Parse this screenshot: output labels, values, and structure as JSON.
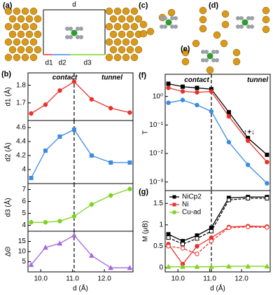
{
  "figure_panels": {
    "a": {
      "panel": "(a)",
      "labels": [
        "d",
        "d1",
        "d2",
        "d3"
      ]
    },
    "c": {
      "panel": "(c)"
    },
    "d": {
      "panel": "(d)"
    },
    "e": {
      "panel": "(e)"
    }
  },
  "chart_data": [
    {
      "type": "line",
      "panel": "(b)",
      "ylabel": "d1 (Å)",
      "xlim": [
        9.6,
        12.9
      ],
      "ylim": [
        1.6,
        1.87
      ],
      "yticks": [
        1.7,
        1.8
      ],
      "vline": 11.05,
      "annotations": [
        "contact",
        "tunnel"
      ],
      "x": [
        9.7,
        10.15,
        10.6,
        11.05,
        11.6,
        12.2,
        12.8
      ],
      "series": [
        {
          "color": "#e8322a",
          "marker": "circle",
          "values": [
            1.64,
            1.69,
            1.77,
            1.82,
            1.72,
            1.67,
            1.645
          ]
        }
      ]
    },
    {
      "type": "line",
      "ylabel": "d2 (Å)",
      "xlim": [
        9.6,
        12.9
      ],
      "ylim": [
        3.8,
        4.7
      ],
      "yticks": [
        4.0,
        4.2,
        4.4,
        4.6
      ],
      "vline": 11.05,
      "x": [
        9.7,
        10.15,
        10.6,
        11.05,
        11.6,
        12.2,
        12.8
      ],
      "series": [
        {
          "color": "#3b8be0",
          "marker": "square",
          "values": [
            3.88,
            4.27,
            4.47,
            4.57,
            4.2,
            4.1,
            4.1
          ]
        }
      ]
    },
    {
      "type": "line",
      "ylabel": "d3 (Å)",
      "xlim": [
        9.6,
        12.9
      ],
      "ylim": [
        3.5,
        7.5
      ],
      "yticks": [
        4,
        5,
        6,
        7
      ],
      "vline": 11.05,
      "x": [
        9.7,
        10.15,
        10.6,
        11.05,
        11.6,
        12.2,
        12.8
      ],
      "series": [
        {
          "color": "#7ed321",
          "marker": "circle",
          "values": [
            4.25,
            4.25,
            4.35,
            4.75,
            5.75,
            6.5,
            7.05
          ]
        }
      ]
    },
    {
      "type": "line",
      "ylabel": "ΔΘ",
      "xlabel": "d (Å)",
      "xlim": [
        9.6,
        12.9
      ],
      "ylim": [
        0,
        20
      ],
      "yticks": [
        5,
        10,
        15
      ],
      "vline": 11.05,
      "xticks": [
        {
          "value": 10,
          "label": "10.0"
        },
        {
          "value": 11,
          "label": "11.0"
        },
        {
          "value": 12,
          "label": "12.0"
        }
      ],
      "x": [
        9.7,
        10.15,
        10.6,
        11.05,
        11.6,
        12.2,
        12.8
      ],
      "series": [
        {
          "color": "#a366e0",
          "marker": "triangle",
          "values": [
            3.5,
            12,
            14,
            18,
            8,
            2,
            2
          ]
        }
      ]
    },
    {
      "type": "line",
      "panel": "(f)",
      "ylabel": "T",
      "log": true,
      "xlim": [
        9.6,
        12.9
      ],
      "ylim": [
        0.0005,
        6
      ],
      "vline": 11.05,
      "annotations": [
        "contact",
        "tunnel",
        "↑+↓"
      ],
      "yticks": [
        {
          "value": 0.001,
          "label": "10⁻³"
        },
        {
          "value": 0.01,
          "label": "10⁻²"
        },
        {
          "value": 0.1,
          "label": "10⁻¹"
        },
        {
          "value": 1,
          "label": "10⁰"
        }
      ],
      "x": [
        9.7,
        10.15,
        10.6,
        11.05,
        11.6,
        12.2,
        12.8
      ],
      "series": [
        {
          "color": "#000000",
          "marker": "square",
          "values": [
            2.8,
            2.2,
            2.0,
            1.8,
            0.28,
            0.035,
            0.009
          ]
        },
        {
          "color": "#e8322a",
          "marker": "circle",
          "values": [
            2.0,
            1.5,
            1.4,
            1.5,
            0.2,
            0.028,
            0.005
          ]
        },
        {
          "color": "#3b8be0",
          "marker": "circle",
          "values": [
            0.6,
            0.75,
            0.5,
            0.3,
            0.025,
            0.004,
            0.0009
          ]
        }
      ]
    },
    {
      "type": "line",
      "panel": "(g)",
      "ylabel": "M (μB)",
      "xlabel": "d (Å)",
      "xlim": [
        9.6,
        12.9
      ],
      "ylim": [
        -0.1,
        1.8
      ],
      "vline": 11.05,
      "legend": "upper left",
      "yticks": [
        0,
        0.5,
        1,
        1.5
      ],
      "xticks": [
        {
          "value": 10,
          "label": "10.0"
        },
        {
          "value": 11,
          "label": "11.0"
        },
        {
          "value": 12,
          "label": "12.0"
        }
      ],
      "x": [
        9.7,
        10.15,
        10.6,
        11.05,
        11.6,
        12.2,
        12.8
      ],
      "series": [
        {
          "name": "NiCp2",
          "color": "#000000",
          "marker": "square",
          "values": [
            0.78,
            0.62,
            0.75,
            0.93,
            1.63,
            1.65,
            1.65
          ]
        },
        {
          "color": "#000000",
          "marker": "square",
          "dashed": true,
          "values": [
            0.7,
            0.55,
            0.68,
            0.85,
            1.58,
            1.62,
            1.62
          ]
        },
        {
          "name": "Ni",
          "color": "#e8322a",
          "marker": "circle",
          "values": [
            0.55,
            0.08,
            0.5,
            0.7,
            0.95,
            0.97,
            0.96
          ]
        },
        {
          "color": "#e8322a",
          "marker": "circle",
          "dashed": true,
          "values": [
            0.5,
            0.45,
            0.32,
            0.62,
            0.93,
            0.95,
            0.94
          ]
        },
        {
          "name": "Cu-ad",
          "color": "#7ed321",
          "marker": "triangle",
          "values": [
            0.02,
            0.02,
            0.02,
            0.02,
            0.03,
            0.03,
            0.03
          ]
        }
      ]
    }
  ]
}
